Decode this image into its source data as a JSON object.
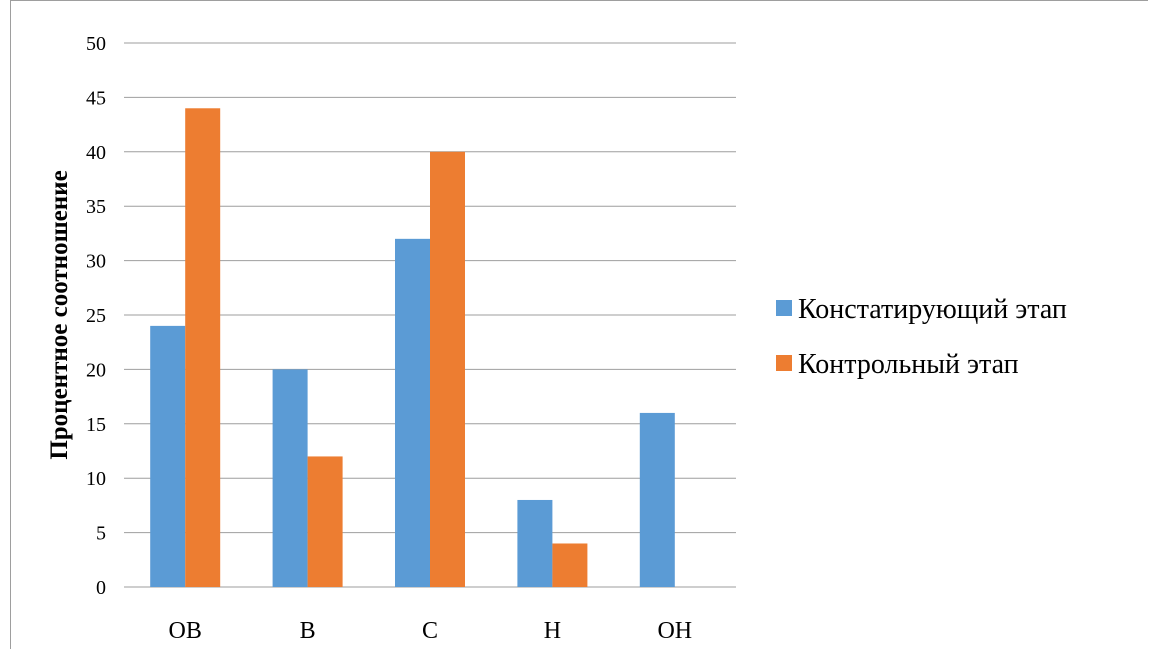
{
  "chart_data": {
    "type": "bar",
    "categories": [
      "ОВ",
      "В",
      "С",
      "Н",
      "ОН"
    ],
    "series": [
      {
        "name": "Констатирующий этап",
        "values": [
          24,
          20,
          32,
          8,
          16
        ],
        "color": "#5B9BD5"
      },
      {
        "name": "Контрольный этап",
        "values": [
          44,
          12,
          40,
          4,
          0
        ],
        "color": "#ED7D31"
      }
    ],
    "title": "",
    "xlabel": "",
    "ylabel": "Процентное соотношение",
    "ylim": [
      0,
      50
    ],
    "ystep": 5,
    "grid": true,
    "legend_position": "right"
  }
}
